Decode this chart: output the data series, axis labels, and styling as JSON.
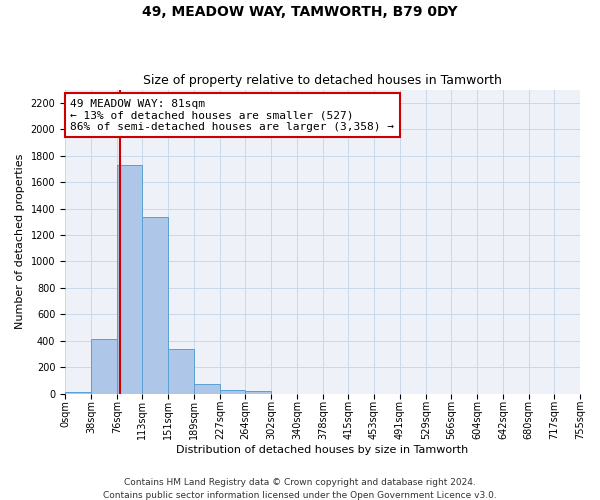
{
  "title": "49, MEADOW WAY, TAMWORTH, B79 0DY",
  "subtitle": "Size of property relative to detached houses in Tamworth",
  "xlabel": "Distribution of detached houses by size in Tamworth",
  "ylabel": "Number of detached properties",
  "bar_values": [
    10,
    410,
    1730,
    1340,
    340,
    75,
    30,
    20,
    0,
    0,
    0,
    0,
    0,
    0,
    0,
    0,
    0,
    0,
    0,
    0
  ],
  "bin_edges": [
    0,
    38,
    76,
    113,
    151,
    189,
    227,
    264,
    302,
    340,
    378,
    415,
    453,
    491,
    529,
    566,
    604,
    642,
    680,
    717,
    755
  ],
  "tick_labels": [
    "0sqm",
    "38sqm",
    "76sqm",
    "113sqm",
    "151sqm",
    "189sqm",
    "227sqm",
    "264sqm",
    "302sqm",
    "340sqm",
    "378sqm",
    "415sqm",
    "453sqm",
    "491sqm",
    "529sqm",
    "566sqm",
    "604sqm",
    "642sqm",
    "680sqm",
    "717sqm",
    "755sqm"
  ],
  "bar_color": "#aec6e8",
  "bar_edge_color": "#5a9fd4",
  "grid_color": "#c8d8ea",
  "background_color": "#eef2f8",
  "vline_x": 81,
  "vline_color": "#cc0000",
  "annotation_text": "49 MEADOW WAY: 81sqm\n← 13% of detached houses are smaller (527)\n86% of semi-detached houses are larger (3,358) →",
  "annotation_box_color": "#ffffff",
  "annotation_box_edge": "#cc0000",
  "ylim": [
    0,
    2300
  ],
  "yticks": [
    0,
    200,
    400,
    600,
    800,
    1000,
    1200,
    1400,
    1600,
    1800,
    2000,
    2200
  ],
  "footer_line1": "Contains HM Land Registry data © Crown copyright and database right 2024.",
  "footer_line2": "Contains public sector information licensed under the Open Government Licence v3.0.",
  "title_fontsize": 10,
  "subtitle_fontsize": 9,
  "axis_label_fontsize": 8,
  "tick_fontsize": 7,
  "annotation_fontsize": 8,
  "footer_fontsize": 6.5
}
